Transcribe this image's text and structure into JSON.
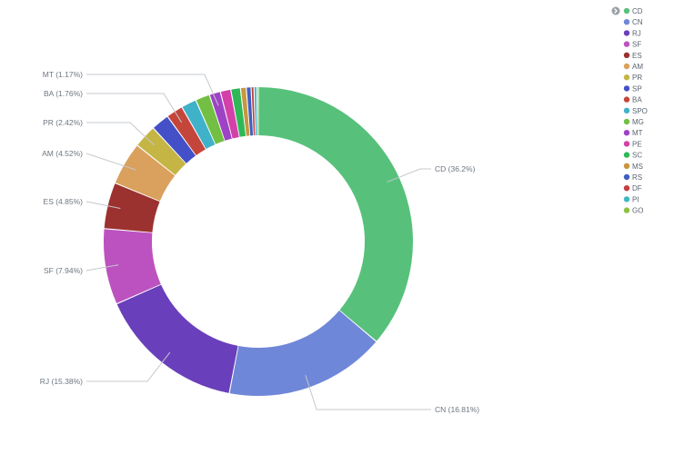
{
  "chart_data": {
    "type": "pie",
    "variant": "donut",
    "title": "",
    "legend_position": "top-right",
    "slices": [
      {
        "name": "CD",
        "value": 36.2,
        "color": "#57c17b",
        "label": "CD (36.2%)"
      },
      {
        "name": "CN",
        "value": 16.81,
        "color": "#6f87d8",
        "label": "CN (16.81%)"
      },
      {
        "name": "RJ",
        "value": 15.38,
        "color": "#6a3fbb",
        "label": "RJ (15.38%)"
      },
      {
        "name": "SF",
        "value": 7.94,
        "color": "#bc52bf",
        "label": "SF (7.94%)"
      },
      {
        "name": "ES",
        "value": 4.85,
        "color": "#9b3230",
        "label": "ES (4.85%)"
      },
      {
        "name": "AM",
        "value": 4.52,
        "color": "#daa05d",
        "label": "AM (4.52%)"
      },
      {
        "name": "PR",
        "value": 2.42,
        "color": "#c4b545",
        "label": "PR (2.42%)"
      },
      {
        "name": "SP",
        "value": 1.9,
        "color": "#4450c7",
        "label": ""
      },
      {
        "name": "BA",
        "value": 1.76,
        "color": "#c4463b",
        "label": "BA (1.76%)"
      },
      {
        "name": "SPO",
        "value": 1.6,
        "color": "#3fb2c9",
        "label": ""
      },
      {
        "name": "MG",
        "value": 1.5,
        "color": "#72bf44",
        "label": ""
      },
      {
        "name": "MT",
        "value": 1.17,
        "color": "#9d43c5",
        "label": "MT (1.17%)"
      },
      {
        "name": "PE",
        "value": 1.1,
        "color": "#d340a8",
        "label": ""
      },
      {
        "name": "SC",
        "value": 1.0,
        "color": "#2eb858",
        "label": ""
      },
      {
        "name": "MS",
        "value": 0.6,
        "color": "#c89640",
        "label": ""
      },
      {
        "name": "RS",
        "value": 0.5,
        "color": "#3f5fc0",
        "label": ""
      },
      {
        "name": "DF",
        "value": 0.3,
        "color": "#c43f3f",
        "label": ""
      },
      {
        "name": "PI",
        "value": 0.3,
        "color": "#3fb8c2",
        "label": ""
      },
      {
        "name": "GO",
        "value": 0.15,
        "color": "#8cc043",
        "label": ""
      }
    ]
  }
}
